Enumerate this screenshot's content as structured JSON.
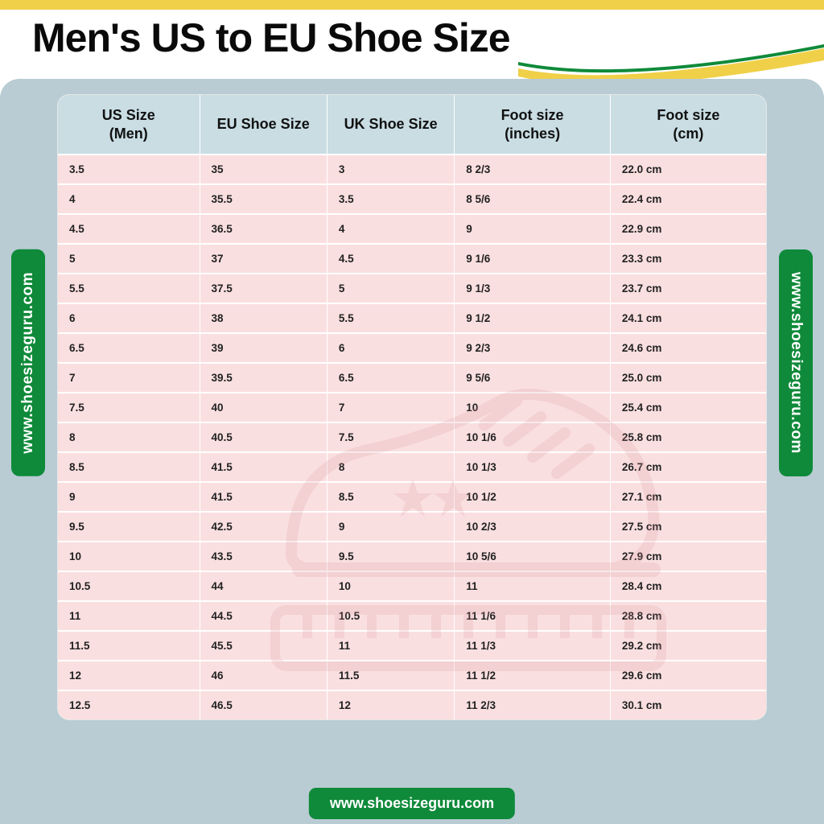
{
  "title": "Men's US to EU Shoe Size",
  "website": "www.shoesizeguru.com",
  "colors": {
    "yellow_stripe": "#f0d048",
    "panel_bg": "#b9ccd4",
    "header_bg": "#c9dde3",
    "row_bg": "#fadfe0",
    "badge_bg": "#0f8a3a",
    "badge_text": "#ffffff",
    "title_color": "#0a0a0a",
    "cell_text": "#222222",
    "watermark_stroke": "#d49094"
  },
  "typography": {
    "title_fontsize": 50,
    "title_weight": 900,
    "header_fontsize": 18,
    "header_weight": 700,
    "cell_fontsize": 13.5,
    "cell_weight": 700,
    "badge_fontsize": 19
  },
  "table": {
    "type": "table",
    "columns": [
      "US Size (Men)",
      "EU  Shoe Size",
      "UK Shoe Size",
      "Foot size (inches)",
      "Foot size (cm)"
    ],
    "column_widths_pct": [
      20,
      18,
      18,
      22,
      22
    ],
    "rows": [
      [
        "3.5",
        "35",
        "3",
        "8 2/3",
        "22.0 cm"
      ],
      [
        "4",
        "35.5",
        "3.5",
        "8 5/6",
        "22.4 cm"
      ],
      [
        "4.5",
        "36.5",
        "4",
        "9",
        "22.9 cm"
      ],
      [
        "5",
        "37",
        "4.5",
        "9 1/6",
        "23.3 cm"
      ],
      [
        "5.5",
        "37.5",
        "5",
        "9 1/3",
        "23.7 cm"
      ],
      [
        "6",
        "38",
        "5.5",
        "9 1/2",
        "24.1 cm"
      ],
      [
        "6.5",
        "39",
        "6",
        "9 2/3",
        "24.6 cm"
      ],
      [
        "7",
        "39.5",
        "6.5",
        "9 5/6",
        "25.0 cm"
      ],
      [
        "7.5",
        "40",
        "7",
        "10",
        "25.4 cm"
      ],
      [
        "8",
        "40.5",
        "7.5",
        "10 1/6",
        "25.8 cm"
      ],
      [
        "8.5",
        "41.5",
        "8",
        "10 1/3",
        "26.7 cm"
      ],
      [
        "9",
        "41.5",
        "8.5",
        "10 1/2",
        "27.1 cm"
      ],
      [
        "9.5",
        "42.5",
        "9",
        "10 2/3",
        "27.5 cm"
      ],
      [
        "10",
        "43.5",
        "9.5",
        "10 5/6",
        "27.9 cm"
      ],
      [
        "10.5",
        "44",
        "10",
        "11",
        "28.4 cm"
      ],
      [
        "11",
        "44.5",
        "10.5",
        "11 1/6",
        "28.8 cm"
      ],
      [
        "11.5",
        "45.5",
        "11",
        "11 1/3",
        "29.2 cm"
      ],
      [
        "12",
        "46",
        "11.5",
        "11 1/2",
        "29.6 cm"
      ],
      [
        "12.5",
        "46.5",
        "12",
        "11 2/3",
        "30.1 cm"
      ]
    ]
  }
}
